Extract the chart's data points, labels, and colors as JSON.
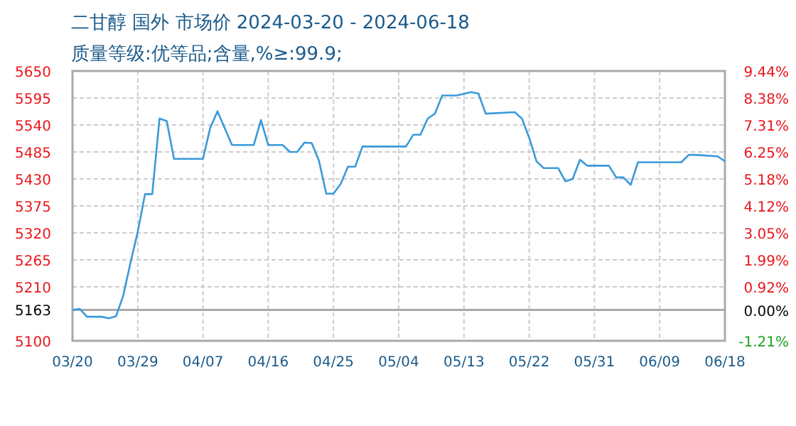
{
  "chart_data": {
    "type": "line",
    "title": "二甘醇 国外 市场价 2024-03-20 - 2024-06-18",
    "subtitle": "质量等级:优等品;含量,%≥:99.9;",
    "x": [
      "2024-03-20",
      "2024-03-21",
      "2024-03-22",
      "2024-03-24",
      "2024-03-25",
      "2024-03-26",
      "2024-03-27",
      "2024-03-28",
      "2024-03-29",
      "2024-03-30",
      "2024-03-31",
      "2024-04-01",
      "2024-04-02",
      "2024-04-03",
      "2024-04-07",
      "2024-04-08",
      "2024-04-09",
      "2024-04-11",
      "2024-04-14",
      "2024-04-15",
      "2024-04-16",
      "2024-04-18",
      "2024-04-19",
      "2024-04-20",
      "2024-04-21",
      "2024-04-22",
      "2024-04-23",
      "2024-04-24",
      "2024-04-25",
      "2024-04-26",
      "2024-04-27",
      "2024-04-28",
      "2024-04-29",
      "2024-05-05",
      "2024-05-06",
      "2024-05-07",
      "2024-05-08",
      "2024-05-09",
      "2024-05-10",
      "2024-05-12",
      "2024-05-14",
      "2024-05-15",
      "2024-05-16",
      "2024-05-20",
      "2024-05-21",
      "2024-05-22",
      "2024-05-23",
      "2024-05-24",
      "2024-05-26",
      "2024-05-27",
      "2024-05-28",
      "2024-05-29",
      "2024-05-30",
      "2024-06-02",
      "2024-06-03",
      "2024-06-04",
      "2024-06-05",
      "2024-06-06",
      "2024-06-12",
      "2024-06-13",
      "2024-06-14",
      "2024-06-17",
      "2024-06-18"
    ],
    "series": [
      {
        "color": "#3a9ad9",
        "values": [
          5163,
          5165,
          5149,
          5149,
          5146,
          5150,
          5192,
          5259,
          5322,
          5399,
          5399,
          5553,
          5548,
          5471,
          5471,
          5534,
          5568,
          5499,
          5499,
          5550,
          5499,
          5499,
          5485,
          5485,
          5504,
          5503,
          5467,
          5400,
          5400,
          5420,
          5455,
          5455,
          5496,
          5496,
          5520,
          5520,
          5553,
          5563,
          5600,
          5600,
          5607,
          5604,
          5563,
          5566,
          5553,
          5514,
          5466,
          5452,
          5452,
          5425,
          5430,
          5469,
          5457,
          5457,
          5433,
          5433,
          5418,
          5464,
          5464,
          5479,
          5479,
          5476,
          5466
        ]
      }
    ],
    "xlim": [
      "2024-03-20",
      "2024-06-18"
    ],
    "xticks": [
      {
        "value": "2024-03-20",
        "label": "03/20"
      },
      {
        "value": "2024-03-29",
        "label": "03/29"
      },
      {
        "value": "2024-04-07",
        "label": "04/07"
      },
      {
        "value": "2024-04-16",
        "label": "04/16"
      },
      {
        "value": "2024-04-25",
        "label": "04/25"
      },
      {
        "value": "2024-05-04",
        "label": "05/04"
      },
      {
        "value": "2024-05-13",
        "label": "05/13"
      },
      {
        "value": "2024-05-22",
        "label": "05/22"
      },
      {
        "value": "2024-05-31",
        "label": "05/31"
      },
      {
        "value": "2024-06-09",
        "label": "06/09"
      },
      {
        "value": "2024-06-18",
        "label": "06/18"
      }
    ],
    "ylim": [
      5100,
      5650
    ],
    "yticks": [
      5100,
      5163,
      5210,
      5265,
      5320,
      5375,
      5430,
      5485,
      5540,
      5595,
      5650
    ],
    "y2lim": [
      -1.21,
      9.44
    ],
    "y2ticks": [
      {
        "value": -1.21,
        "label": "-1.21%"
      },
      {
        "value": 0,
        "label": "0.00%"
      },
      {
        "value": 0.92,
        "label": "0.92%"
      },
      {
        "value": 1.99,
        "label": "1.99%"
      },
      {
        "value": 3.05,
        "label": "3.05%"
      },
      {
        "value": 4.12,
        "label": "4.12%"
      },
      {
        "value": 5.18,
        "label": "5.18%"
      },
      {
        "value": 6.25,
        "label": "6.25%"
      },
      {
        "value": 7.31,
        "label": "7.31%"
      },
      {
        "value": 8.38,
        "label": "8.38%"
      },
      {
        "value": 9.44,
        "label": "9.44%"
      }
    ],
    "ref_lines": [
      {
        "axis": "y",
        "value": 5163,
        "color": "#aaaaaa"
      }
    ],
    "grid": true,
    "marker": "none",
    "line_style": "solid"
  }
}
